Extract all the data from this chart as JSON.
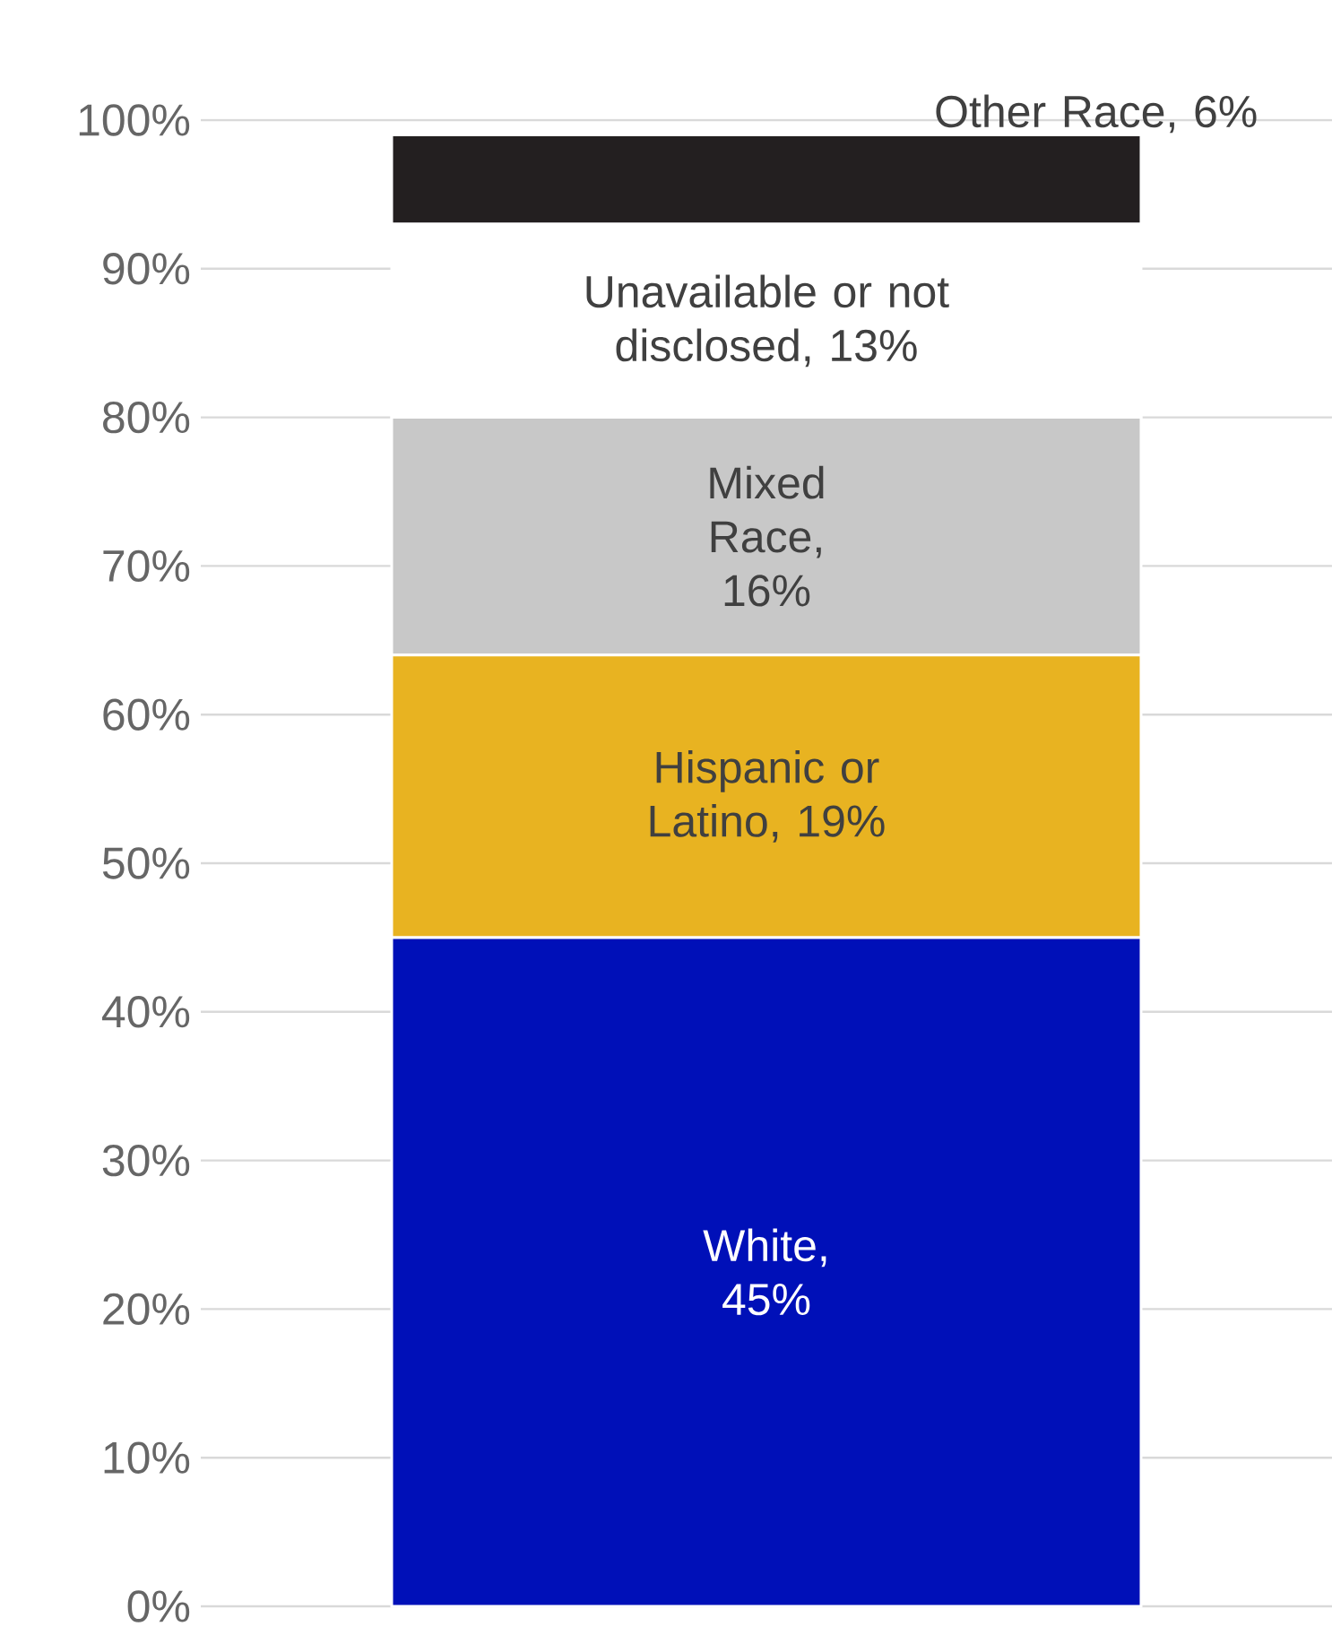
{
  "chart_data": {
    "type": "bar",
    "stacked": true,
    "categories": [
      null
    ],
    "series": [
      {
        "color": "#0010b8",
        "values": [
          45
        ],
        "value_labels": [
          "White, 45%"
        ]
      },
      {
        "color": "#e8b321",
        "values": [
          19
        ],
        "value_labels": [
          "Hispanic or Latino, 19%"
        ]
      },
      {
        "color": "#c8c8c8",
        "values": [
          16
        ],
        "value_labels": [
          "Mixed Race, 16%"
        ]
      },
      {
        "color": "#ffffff",
        "values": [
          13
        ],
        "value_labels": [
          "Unavailable or not disclosed, 13%"
        ]
      },
      {
        "color": "#231f20",
        "values": [
          6
        ],
        "value_labels": [
          "Other Race, 6%"
        ]
      }
    ],
    "ylim": [
      0,
      100
    ],
    "yticks": [
      {
        "value": 0,
        "label": "0%"
      },
      {
        "value": 10,
        "label": "10%"
      },
      {
        "value": 20,
        "label": "20%"
      },
      {
        "value": 30,
        "label": "30%"
      },
      {
        "value": 40,
        "label": "40%"
      },
      {
        "value": 50,
        "label": "50%"
      },
      {
        "value": 60,
        "label": "60%"
      },
      {
        "value": 70,
        "label": "70%"
      },
      {
        "value": 80,
        "label": "80%"
      },
      {
        "value": 90,
        "label": "90%"
      },
      {
        "value": 100,
        "label": "100%"
      }
    ],
    "grid": "y"
  }
}
